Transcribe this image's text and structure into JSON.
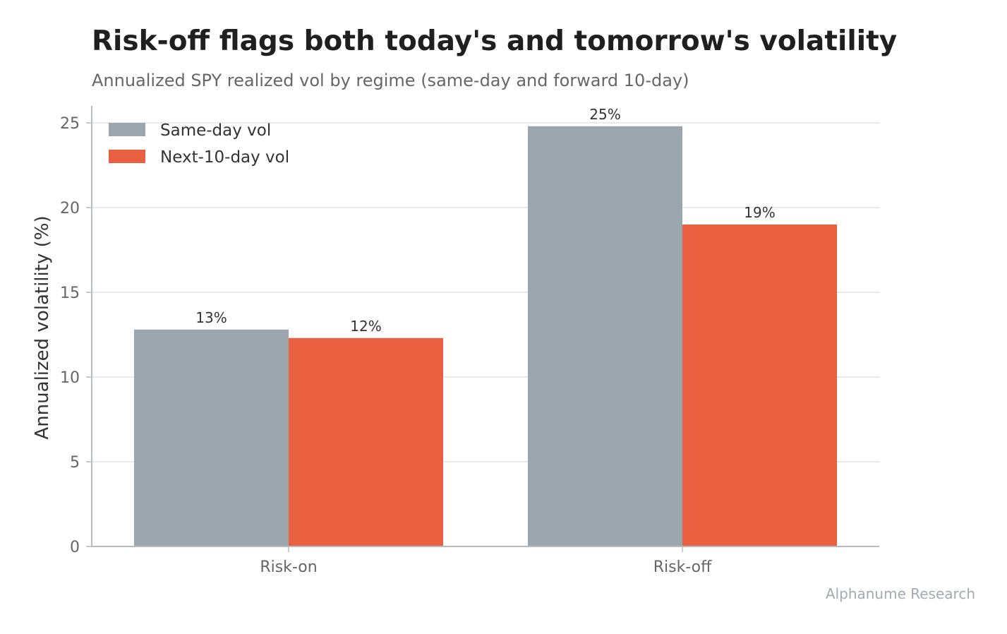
{
  "colors": {
    "same_day": "#9ba5ae",
    "next_10_day": "#e8603f",
    "grid": "#e2e4e7",
    "axis": "#b5bbc1",
    "text": "#333333",
    "muted": "#666666"
  },
  "chart_data": {
    "type": "bar",
    "title": "Risk-off flags both today's and tomorrow's volatility",
    "subtitle": "Annualized SPY realized vol by regime (same-day and forward 10-day)",
    "xlabel": "",
    "ylabel": "Annualized volatility (%)",
    "ylim": [
      0,
      26
    ],
    "yticks": [
      "0",
      "5",
      "10",
      "15",
      "20",
      "25"
    ],
    "grid": true,
    "legend_position": "top-left",
    "categories": [
      "Risk-on",
      "Risk-off"
    ],
    "series": [
      {
        "name": "Same-day vol",
        "values": [
          12.8,
          24.8
        ],
        "labels": [
          "13%",
          "25%"
        ]
      },
      {
        "name": "Next-10-day vol",
        "values": [
          12.3,
          19.0
        ],
        "labels": [
          "12%",
          "19%"
        ]
      }
    ]
  },
  "footer": {
    "source": "Alphanume Research"
  }
}
